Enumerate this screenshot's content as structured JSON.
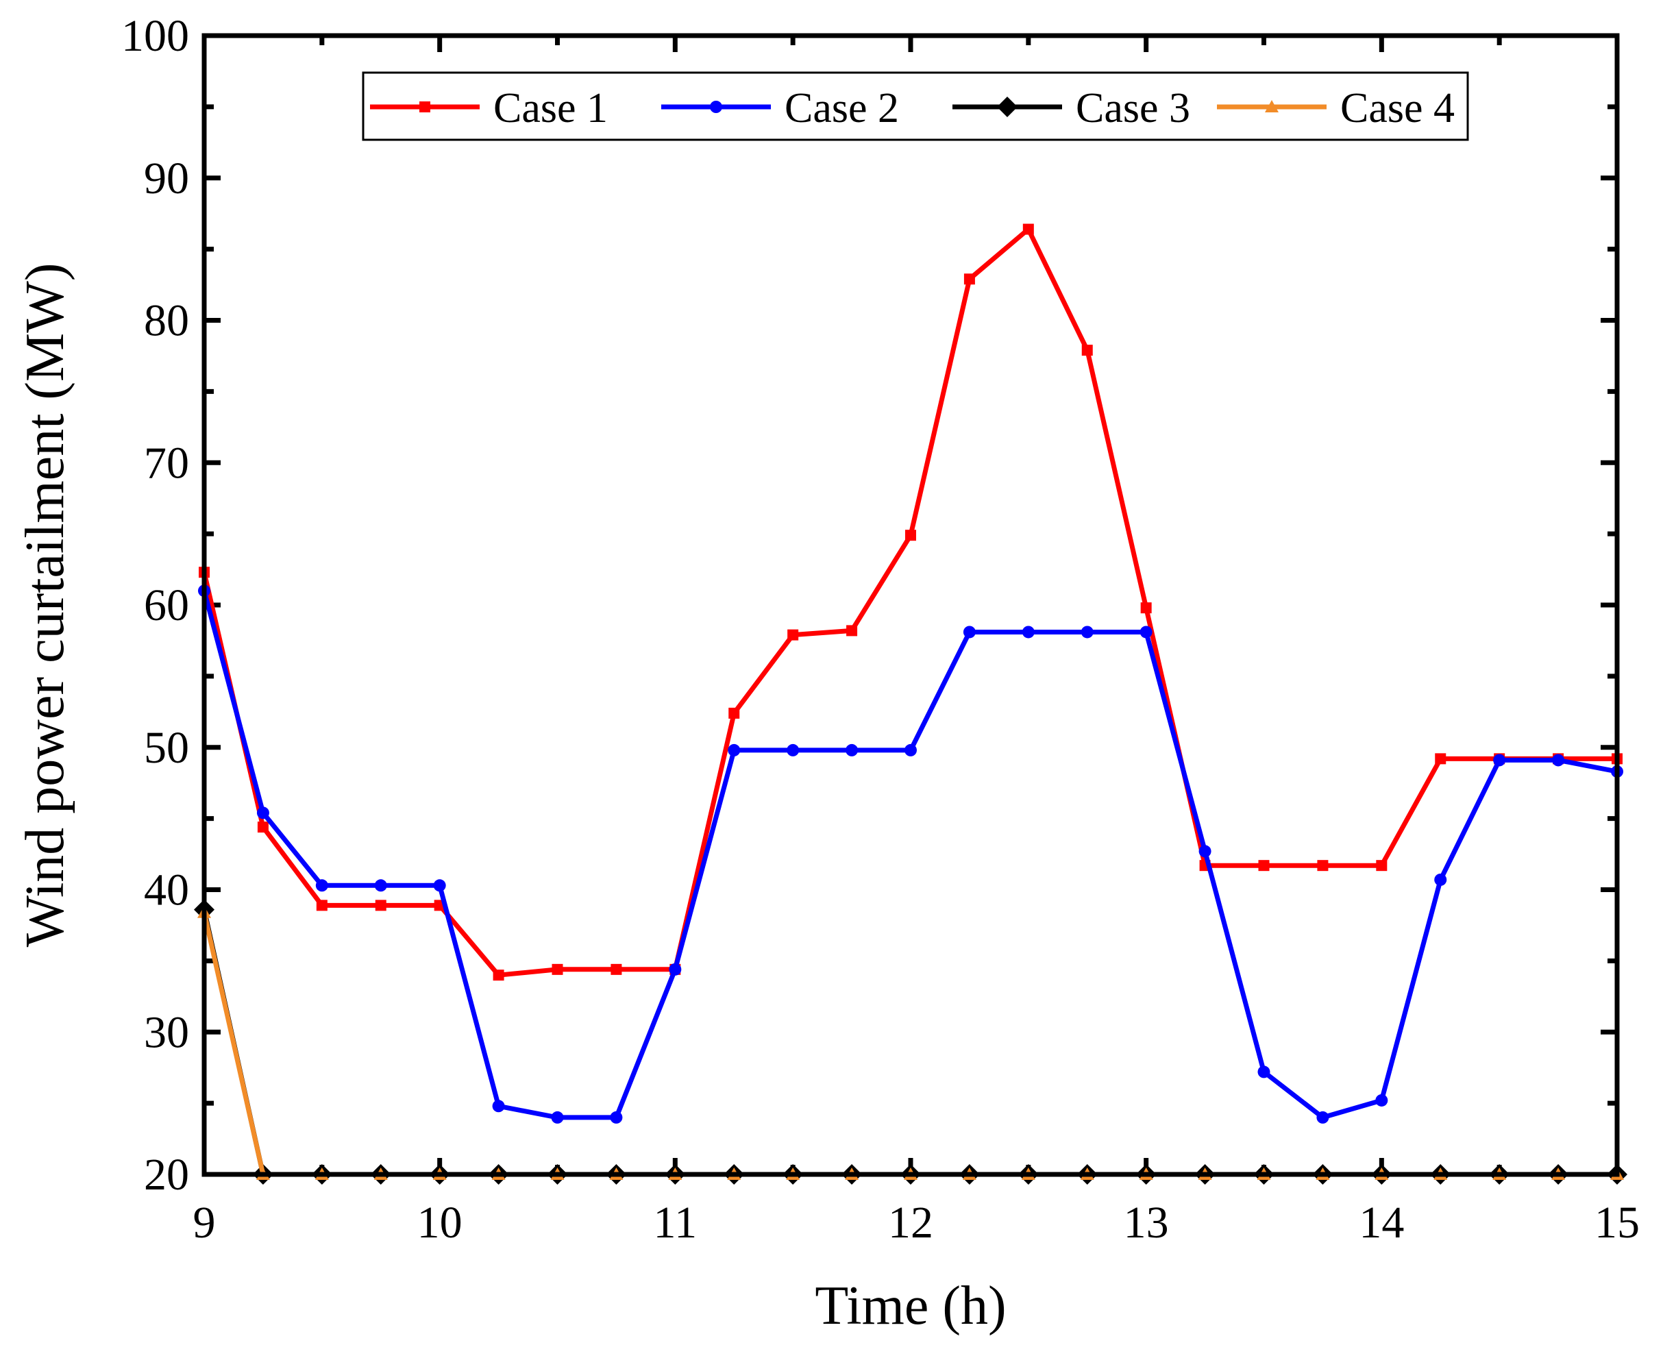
{
  "chart_data": {
    "type": "line",
    "title": "",
    "xlabel": "Time (h)",
    "ylabel": "Wind power curtailment (MW)",
    "xlim": [
      9,
      15
    ],
    "ylim": [
      20,
      100
    ],
    "xticks": [
      9,
      10,
      11,
      12,
      13,
      14,
      15
    ],
    "yticks": [
      20,
      30,
      40,
      50,
      60,
      70,
      80,
      90,
      100
    ],
    "grid": false,
    "legend_position": "top-center",
    "x": [
      9,
      9.25,
      9.5,
      9.75,
      10,
      10.25,
      10.5,
      10.75,
      11,
      11.25,
      11.5,
      11.75,
      12,
      12.25,
      12.5,
      12.75,
      13,
      13.25,
      13.5,
      13.75,
      14,
      14.25,
      14.5,
      14.75,
      15
    ],
    "series": [
      {
        "name": "Case 1",
        "color": "#ff0000",
        "marker": "square",
        "values": [
          62.3,
          44.4,
          38.9,
          38.9,
          38.9,
          34.0,
          34.4,
          34.4,
          34.4,
          52.4,
          57.9,
          58.2,
          64.9,
          82.9,
          86.4,
          77.9,
          59.8,
          41.7,
          41.7,
          41.7,
          41.7,
          49.2,
          49.2,
          49.2,
          49.2
        ]
      },
      {
        "name": "Case 2",
        "color": "#0000ff",
        "marker": "circle",
        "values": [
          61.0,
          45.4,
          40.3,
          40.3,
          40.3,
          24.8,
          24.0,
          24.0,
          34.4,
          49.8,
          49.8,
          49.8,
          49.8,
          58.1,
          58.1,
          58.1,
          58.1,
          42.7,
          27.2,
          24.0,
          25.2,
          40.7,
          49.1,
          49.1,
          48.3
        ]
      },
      {
        "name": "Case 3",
        "color": "#000000",
        "marker": "diamond",
        "values": [
          38.6,
          20,
          20,
          20,
          20,
          20,
          20,
          20,
          20,
          20,
          20,
          20,
          20,
          20,
          20,
          20,
          20,
          20,
          20,
          20,
          20,
          20,
          20,
          20,
          20
        ]
      },
      {
        "name": "Case 4",
        "color": "#f28c28",
        "marker": "triangle",
        "values": [
          38.4,
          20,
          20,
          20,
          20,
          20,
          20,
          20,
          20,
          20,
          20,
          20,
          20,
          20,
          20,
          20,
          20,
          20,
          20,
          20,
          20,
          20,
          20,
          20,
          20
        ]
      }
    ]
  }
}
